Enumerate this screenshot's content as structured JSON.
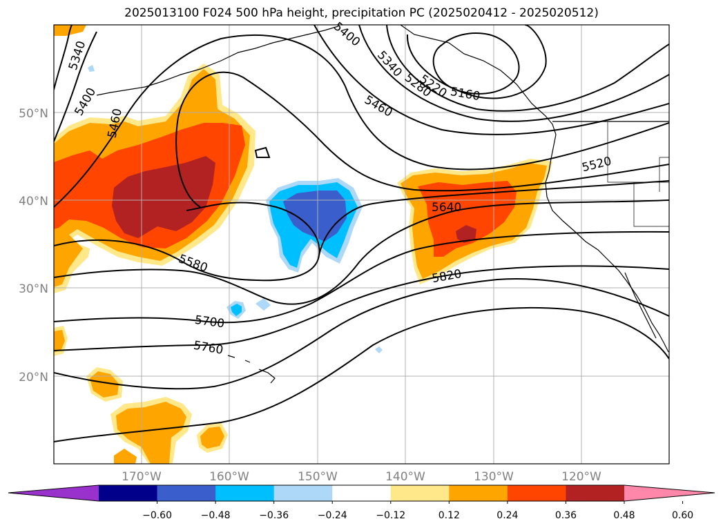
{
  "title": "2025013100 F024 500 hPa height, precipitation PC (2025020412 - 2025020512)",
  "lat_labels": [
    "50°N",
    "40°N",
    "30°N",
    "20°N"
  ],
  "lon_labels": [
    "170°W",
    "160°W",
    "150°W",
    "140°W",
    "130°W",
    "120°W"
  ],
  "contour_labels": [
    "5340",
    "5400",
    "5460",
    "5400",
    "5340",
    "5280",
    "5220",
    "5160",
    "5460",
    "5520",
    "5640",
    "5580",
    "5700",
    "5760",
    "5820"
  ],
  "colorbar": {
    "ticks": [
      "−0.60",
      "−0.48",
      "−0.36",
      "−0.24",
      "−0.12",
      "0.12",
      "0.24",
      "0.36",
      "0.48",
      "0.60"
    ],
    "colors": [
      "#9932cc",
      "#00008b",
      "#3a5fcd",
      "#00bfff",
      "#add8f7",
      "#ffffff",
      "#ffe88a",
      "#ffa500",
      "#ff4500",
      "#b22222",
      "#ff88aa"
    ]
  },
  "colors": {
    "grid": "#b0b0b0",
    "axis_label": "#808080",
    "contour": "#000000"
  }
}
